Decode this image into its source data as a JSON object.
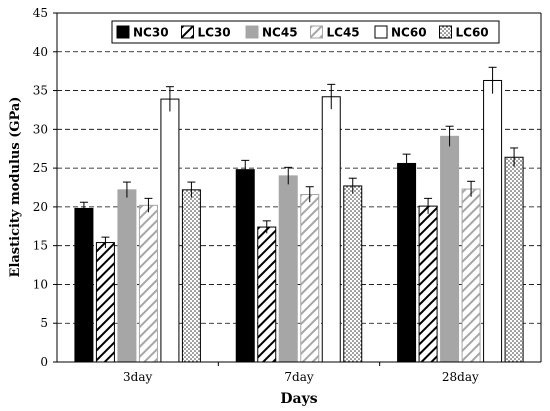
{
  "chart_data": {
    "type": "bar",
    "xlabel": "Days",
    "ylabel": "Elasticity modulus (GPa)",
    "ylim": [
      0,
      45
    ],
    "yticks": [
      0,
      5,
      10,
      15,
      20,
      25,
      30,
      35,
      40,
      45
    ],
    "grid": "horizontal dashed",
    "legend_placement": "top",
    "categories": [
      "3day",
      "7day",
      "28day"
    ],
    "series": [
      {
        "name": "NC30",
        "values": [
          19.8,
          24.8,
          25.6
        ],
        "errors": [
          0.8,
          1.2,
          1.2
        ],
        "fill": "solid",
        "color": "#000000"
      },
      {
        "name": "LC30",
        "values": [
          15.4,
          17.4,
          20.1
        ],
        "errors": [
          0.7,
          0.8,
          1.0
        ],
        "fill": "hatch-black",
        "color": "#000000"
      },
      {
        "name": "NC45",
        "values": [
          22.2,
          24.0,
          29.1
        ],
        "errors": [
          1.0,
          1.1,
          1.3
        ],
        "fill": "solid",
        "color": "#a6a6a6"
      },
      {
        "name": "LC45",
        "values": [
          20.2,
          21.6,
          22.3
        ],
        "errors": [
          0.9,
          1.0,
          1.0
        ],
        "fill": "hatch-gray",
        "color": "#a6a6a6"
      },
      {
        "name": "NC60",
        "values": [
          33.9,
          34.2,
          36.3
        ],
        "errors": [
          1.6,
          1.6,
          1.7
        ],
        "fill": "white",
        "color": "#000000"
      },
      {
        "name": "LC60",
        "values": [
          22.2,
          22.7,
          26.4
        ],
        "errors": [
          1.0,
          1.0,
          1.2
        ],
        "fill": "dotted",
        "color": "#000000"
      }
    ]
  }
}
